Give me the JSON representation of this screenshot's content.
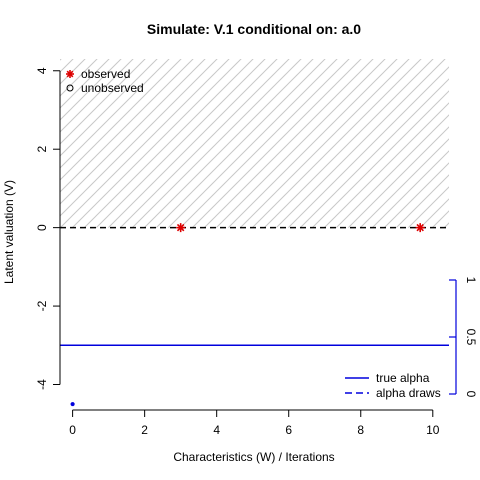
{
  "chart_data": {
    "type": "scatter",
    "title": "Simulate: V.1 conditional on: a.0",
    "xlabel": "Characteristics (W) / Iterations",
    "ylabel": "Latent valuation (V)",
    "xlim": [
      -0.35,
      10.45
    ],
    "ylim": [
      -4.65,
      4.3
    ],
    "x_ticks": [
      "0",
      "2",
      "4",
      "6",
      "8",
      "10"
    ],
    "y_ticks": [
      "-4",
      "-2",
      "0",
      "2",
      "4"
    ],
    "right_axis": {
      "range": [
        0,
        1
      ],
      "ticks": [
        "0",
        "0.5",
        "1"
      ]
    },
    "shaded_region": {
      "y_from": 0,
      "y_to": 4.3,
      "pattern": "diagonal-hatch"
    },
    "reference_line": {
      "y": 0,
      "style": "dashed"
    },
    "series": [
      {
        "name": "observed",
        "marker": "asterisk",
        "color": "#dd0000",
        "points": [
          {
            "x": 3.0,
            "y": 0.0
          },
          {
            "x": 9.65,
            "y": 0.0
          }
        ]
      },
      {
        "name": "unobserved",
        "marker": "circle",
        "color": "#000000",
        "points": []
      }
    ],
    "lines": [
      {
        "name": "true alpha",
        "style": "solid",
        "color": "#0000dd",
        "y": -3.0
      },
      {
        "name": "alpha draws",
        "style": "dashed",
        "color": "#0000dd",
        "points": [
          {
            "x": 0.0,
            "y": -4.5
          }
        ]
      }
    ],
    "legends": [
      {
        "placement": "top-left",
        "entries": [
          "observed",
          "unobserved"
        ]
      },
      {
        "placement": "bottom-right",
        "entries": [
          "true alpha",
          "alpha draws"
        ]
      }
    ],
    "grid": false
  }
}
